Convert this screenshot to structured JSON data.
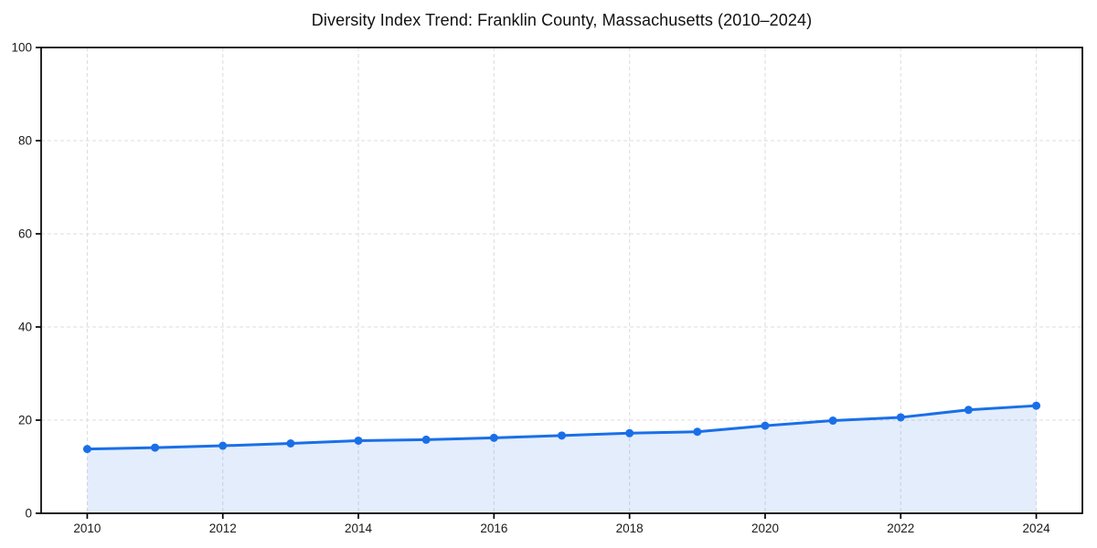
{
  "chart_data": {
    "type": "line",
    "title": "Diversity Index Trend: Franklin County, Massachusetts (2010–2024)",
    "xlabel": "",
    "ylabel": "",
    "x": [
      2010,
      2011,
      2012,
      2013,
      2014,
      2015,
      2016,
      2017,
      2018,
      2019,
      2020,
      2021,
      2022,
      2023,
      2024
    ],
    "values": [
      13.8,
      14.1,
      14.5,
      15.0,
      15.6,
      15.8,
      16.2,
      16.7,
      17.2,
      17.5,
      18.8,
      19.9,
      20.6,
      22.2,
      23.1
    ],
    "xlim": [
      2009.32,
      2024.68
    ],
    "ylim": [
      0,
      100
    ],
    "xticks": [
      2010,
      2012,
      2014,
      2016,
      2018,
      2020,
      2022,
      2024
    ],
    "yticks": [
      0,
      20,
      40,
      60,
      80,
      100
    ],
    "grid": "dashed",
    "legend": "none",
    "area_fill": true,
    "marker": "circle",
    "colors": {
      "line": "#1a6fe8",
      "marker": "#1a6fe8",
      "fill": "#1a6fe8",
      "fill_opacity": 0.12,
      "gridline": "#dcdcdc",
      "spine": "#000000",
      "tick_label": "#1a1a1a",
      "background": "#ffffff"
    }
  }
}
